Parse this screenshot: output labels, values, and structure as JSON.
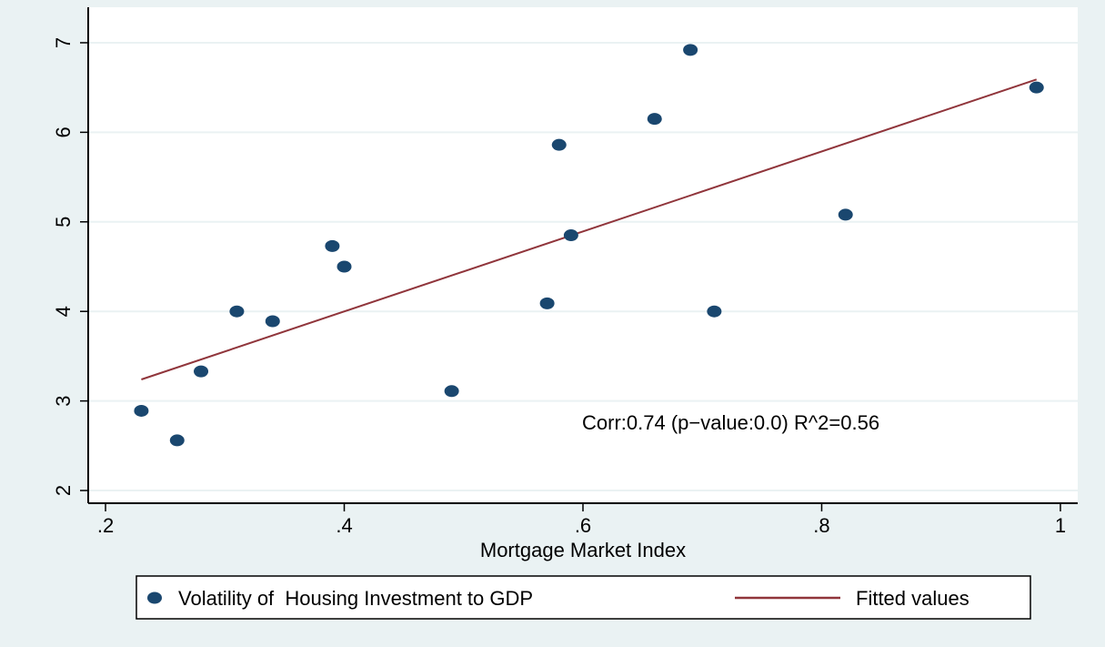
{
  "chart_data": {
    "type": "scatter",
    "xlabel": "Mortgage Market Index",
    "annotation": "Corr:0.74 (p−value:0.0) R^2=0.56",
    "xlim": [
      0.1855,
      1.0145
    ],
    "ylim": [
      1.858,
      7.396
    ],
    "xticks": [
      {
        "value": 0.2,
        "label": ".2"
      },
      {
        "value": 0.4,
        "label": ".4"
      },
      {
        "value": 0.6,
        "label": ".6"
      },
      {
        "value": 0.8,
        "label": ".8"
      },
      1
    ],
    "yticks": [
      2,
      3,
      4,
      5,
      6,
      7
    ],
    "grid": true,
    "legend": "bottom",
    "series": [
      {
        "name": "Volatility of  Housing Investment to GDP",
        "type": "scatter",
        "color": "#1a476f",
        "x": [
          0.23,
          0.26,
          0.28,
          0.31,
          0.34,
          0.39,
          0.4,
          0.49,
          0.57,
          0.58,
          0.59,
          0.66,
          0.69,
          0.71,
          0.82,
          0.98
        ],
        "values": [
          2.89,
          2.56,
          3.33,
          4.0,
          3.89,
          4.73,
          4.5,
          3.11,
          4.09,
          5.86,
          4.85,
          6.15,
          6.92,
          4.0,
          5.08,
          6.5
        ]
      },
      {
        "name": "Fitted values",
        "type": "line",
        "color": "#90353b",
        "x": [
          0.23,
          0.98
        ],
        "values": [
          3.24,
          6.59
        ]
      }
    ]
  }
}
